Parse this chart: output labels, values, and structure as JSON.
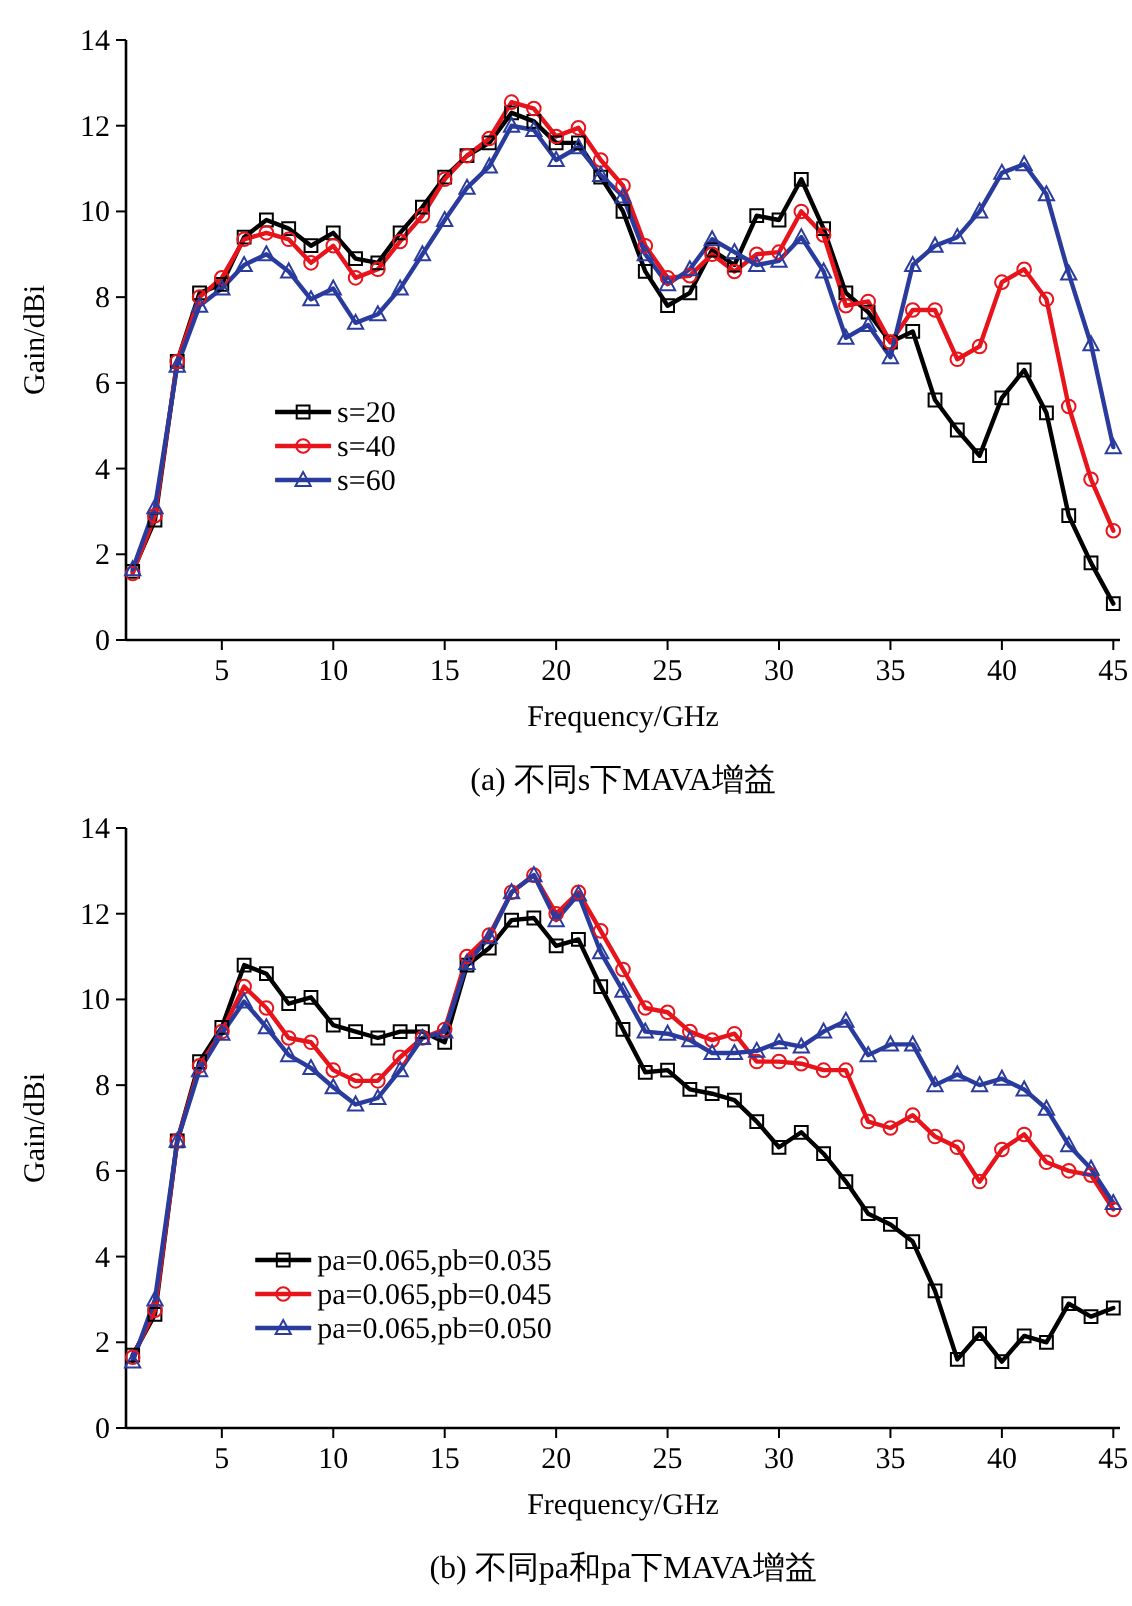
{
  "chart_data": [
    {
      "type": "line",
      "title": "(a) 不同s下MAVA增益",
      "xlabel": "Frequency/GHz",
      "ylabel": "Gain/dBi",
      "x": [
        1,
        2,
        3,
        4,
        5,
        6,
        7,
        8,
        9,
        10,
        11,
        12,
        13,
        14,
        15,
        16,
        17,
        18,
        19,
        20,
        21,
        22,
        23,
        24,
        25,
        26,
        27,
        28,
        29,
        30,
        31,
        32,
        33,
        34,
        35,
        36,
        37,
        38,
        39,
        40,
        41,
        42,
        43,
        44,
        45
      ],
      "xlim": [
        0.7,
        45.3
      ],
      "xticks": [
        5,
        10,
        15,
        20,
        25,
        30,
        35,
        40,
        45
      ],
      "ylim": [
        0,
        14
      ],
      "yticks": [
        0,
        2,
        4,
        6,
        8,
        10,
        12,
        14
      ],
      "grid": false,
      "legend": "left",
      "line_style": "solid",
      "series": [
        {
          "name": "s=20",
          "color": "#000000",
          "marker": "square",
          "values": [
            1.6,
            2.8,
            6.5,
            8.1,
            8.3,
            9.4,
            9.8,
            9.6,
            9.2,
            9.5,
            8.9,
            8.8,
            9.5,
            10.1,
            10.8,
            11.3,
            11.6,
            12.3,
            12.1,
            11.6,
            11.6,
            10.8,
            10.0,
            8.6,
            7.8,
            8.1,
            9.1,
            8.75,
            9.9,
            9.8,
            10.75,
            9.6,
            8.1,
            7.65,
            6.95,
            7.2,
            5.6,
            4.9,
            4.3,
            5.65,
            6.3,
            5.3,
            2.9,
            1.8,
            0.85
          ]
        },
        {
          "name": "s=40",
          "color": "#e8141c",
          "marker": "circle",
          "values": [
            1.55,
            2.9,
            6.5,
            8.0,
            8.45,
            9.35,
            9.5,
            9.35,
            8.8,
            9.2,
            8.45,
            8.65,
            9.3,
            9.9,
            10.75,
            11.3,
            11.7,
            12.55,
            12.4,
            11.75,
            11.95,
            11.2,
            10.6,
            9.2,
            8.45,
            8.5,
            9.0,
            8.6,
            9.0,
            9.05,
            10.0,
            9.45,
            7.8,
            7.9,
            6.95,
            7.7,
            7.7,
            6.55,
            6.85,
            8.35,
            8.65,
            7.95,
            5.45,
            3.75,
            2.55
          ]
        },
        {
          "name": "s=60",
          "color": "#2a3b9e",
          "marker": "triangle",
          "values": [
            1.65,
            3.1,
            6.4,
            7.8,
            8.2,
            8.75,
            9.0,
            8.6,
            7.95,
            8.2,
            7.4,
            7.6,
            8.2,
            9.0,
            9.8,
            10.55,
            11.05,
            12.0,
            11.9,
            11.2,
            11.5,
            10.85,
            10.35,
            9.0,
            8.3,
            8.65,
            9.35,
            9.05,
            8.75,
            8.85,
            9.4,
            8.6,
            7.05,
            7.35,
            6.6,
            8.75,
            9.2,
            9.4,
            10.0,
            10.9,
            11.1,
            10.4,
            8.55,
            6.9,
            4.5
          ]
        }
      ]
    },
    {
      "type": "line",
      "title": "(b) 不同pa和pa下MAVA增益",
      "xlabel": "Frequency/GHz",
      "ylabel": "Gain/dBi",
      "x": [
        1,
        2,
        3,
        4,
        5,
        6,
        7,
        8,
        9,
        10,
        11,
        12,
        13,
        14,
        15,
        16,
        17,
        18,
        19,
        20,
        21,
        22,
        23,
        24,
        25,
        26,
        27,
        28,
        29,
        30,
        31,
        32,
        33,
        34,
        35,
        36,
        37,
        38,
        39,
        40,
        41,
        42,
        43,
        44,
        45
      ],
      "xlim": [
        0.7,
        45.3
      ],
      "xticks": [
        5,
        10,
        15,
        20,
        25,
        30,
        35,
        40,
        45
      ],
      "ylim": [
        0,
        14
      ],
      "yticks": [
        0,
        2,
        4,
        6,
        8,
        10,
        12,
        14
      ],
      "grid": false,
      "legend": "bottom left",
      "line_style": "solid",
      "series": [
        {
          "name": "pa=0.065,pb=0.035",
          "color": "#000000",
          "marker": "square",
          "values": [
            1.7,
            2.65,
            6.7,
            8.55,
            9.35,
            10.8,
            10.6,
            9.9,
            10.05,
            9.4,
            9.25,
            9.1,
            9.25,
            9.25,
            9.0,
            10.8,
            11.2,
            11.85,
            11.9,
            11.25,
            11.4,
            10.3,
            9.3,
            8.3,
            8.35,
            7.9,
            7.8,
            7.65,
            7.15,
            6.55,
            6.9,
            6.4,
            5.75,
            5.0,
            4.75,
            4.35,
            3.2,
            1.6,
            2.2,
            1.55,
            2.15,
            2.0,
            2.9,
            2.6,
            2.8
          ]
        },
        {
          "name": "pa=0.065,pb=0.045",
          "color": "#e8141c",
          "marker": "circle",
          "values": [
            1.65,
            2.75,
            6.7,
            8.45,
            9.25,
            10.3,
            9.8,
            9.1,
            9.0,
            8.35,
            8.1,
            8.1,
            8.65,
            9.1,
            9.3,
            11.0,
            11.5,
            12.5,
            12.9,
            12.0,
            12.5,
            11.6,
            10.7,
            9.8,
            9.7,
            9.25,
            9.05,
            9.2,
            8.55,
            8.55,
            8.5,
            8.35,
            8.35,
            7.15,
            7.0,
            7.3,
            6.8,
            6.55,
            5.75,
            6.5,
            6.85,
            6.2,
            6.0,
            5.9,
            5.1
          ]
        },
        {
          "name": "pa=0.065,pb=0.050",
          "color": "#2a3b9e",
          "marker": "triangle",
          "values": [
            1.55,
            3.0,
            6.7,
            8.35,
            9.2,
            9.95,
            9.35,
            8.7,
            8.4,
            7.95,
            7.55,
            7.7,
            8.35,
            9.1,
            9.25,
            10.85,
            11.45,
            12.5,
            12.9,
            11.85,
            12.45,
            11.1,
            10.2,
            9.25,
            9.2,
            9.05,
            8.75,
            8.75,
            8.8,
            9.0,
            8.9,
            9.25,
            9.5,
            8.7,
            8.95,
            8.95,
            8.0,
            8.25,
            8.0,
            8.15,
            7.9,
            7.45,
            6.6,
            6.05,
            5.25
          ]
        }
      ]
    }
  ]
}
